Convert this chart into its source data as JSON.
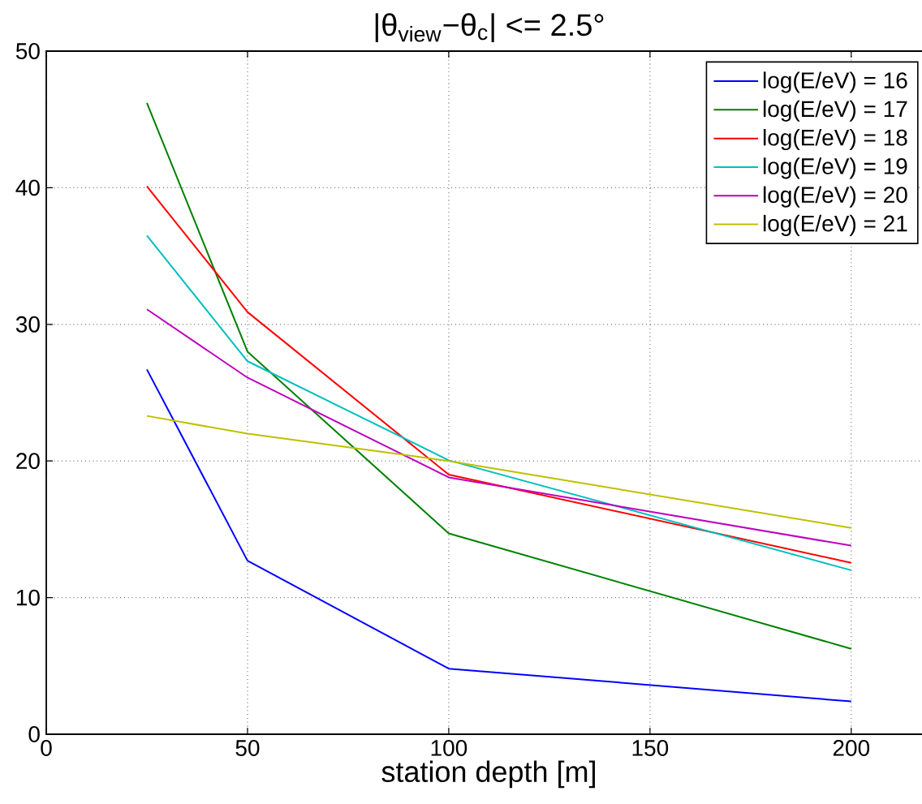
{
  "chart_data": {
    "type": "line",
    "title": "|θ$_{view}$−θ$_{c}$| <= 2.5°",
    "xlabel": "station depth [m]",
    "x": [
      25,
      50,
      100,
      200
    ],
    "series": [
      {
        "name": "log(E/eV) = 16",
        "color": "#0000ff",
        "values": [
          26.7,
          12.7,
          4.8,
          2.4
        ]
      },
      {
        "name": "log(E/eV) = 17",
        "color": "#008000",
        "values": [
          46.2,
          28.0,
          14.7,
          6.25
        ]
      },
      {
        "name": "log(E/eV) = 18",
        "color": "#ff0000",
        "values": [
          40.1,
          30.9,
          19.0,
          12.55
        ]
      },
      {
        "name": "log(E/eV) = 19",
        "color": "#00bfbf",
        "values": [
          36.5,
          27.3,
          20.05,
          12.0
        ]
      },
      {
        "name": "log(E/eV) = 20",
        "color": "#bf00bf",
        "values": [
          31.1,
          26.1,
          18.8,
          13.8
        ]
      },
      {
        "name": "log(E/eV) = 21",
        "color": "#bfbf00",
        "values": [
          23.3,
          22.0,
          20.0,
          15.1
        ]
      }
    ],
    "xlim": [
      0,
      220
    ],
    "ylim": [
      0,
      50
    ],
    "xticks": [
      0,
      50,
      100,
      150,
      200
    ],
    "yticks": [
      0,
      10,
      20,
      30,
      40,
      50
    ],
    "grid": true,
    "legend": "top right",
    "marker": "none",
    "line_style": "solid"
  }
}
